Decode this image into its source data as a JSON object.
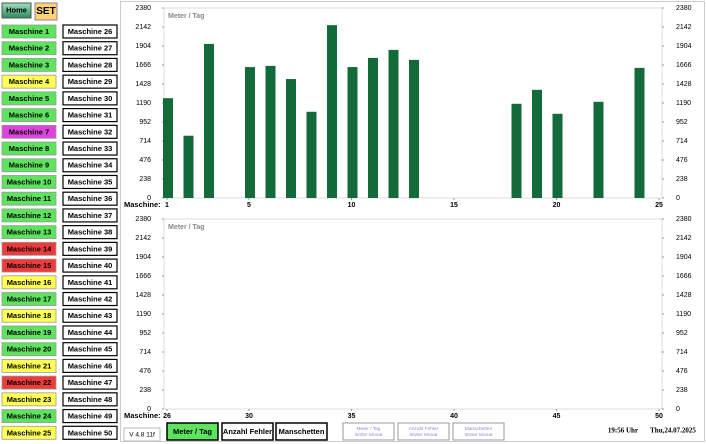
{
  "header": {
    "home": "Home",
    "set": "SET"
  },
  "machines": [
    {
      "label": "Maschine 1",
      "color": "#5ee35e"
    },
    {
      "label": "Maschine 2",
      "color": "#5ee35e"
    },
    {
      "label": "Maschine 3",
      "color": "#5ee35e"
    },
    {
      "label": "Maschine 4",
      "color": "#ffff55"
    },
    {
      "label": "Maschine 5",
      "color": "#5ee35e"
    },
    {
      "label": "Maschine 6",
      "color": "#5ee35e"
    },
    {
      "label": "Maschine 7",
      "color": "#dd44dd"
    },
    {
      "label": "Maschine 8",
      "color": "#5ee35e"
    },
    {
      "label": "Maschine 9",
      "color": "#5ee35e"
    },
    {
      "label": "Maschine 10",
      "color": "#5ee35e"
    },
    {
      "label": "Maschine 11",
      "color": "#5ee35e"
    },
    {
      "label": "Maschine 12",
      "color": "#5ee35e"
    },
    {
      "label": "Maschine 13",
      "color": "#5ee35e"
    },
    {
      "label": "Maschine 14",
      "color": "#ee3b3b"
    },
    {
      "label": "Maschine 15",
      "color": "#ee3b3b"
    },
    {
      "label": "Maschine 16",
      "color": "#ffff55"
    },
    {
      "label": "Maschine 17",
      "color": "#5ee35e"
    },
    {
      "label": "Maschine 18",
      "color": "#ffff55"
    },
    {
      "label": "Maschine 19",
      "color": "#5ee35e"
    },
    {
      "label": "Maschine 20",
      "color": "#5ee35e"
    },
    {
      "label": "Maschine 21",
      "color": "#ffff55"
    },
    {
      "label": "Maschine 22",
      "color": "#ee3b3b"
    },
    {
      "label": "Maschine 23",
      "color": "#ffff55"
    },
    {
      "label": "Maschine 24",
      "color": "#5ee35e"
    },
    {
      "label": "Maschine 25",
      "color": "#ffff55"
    },
    {
      "label": "Maschine 26",
      "color": "#ffffff"
    },
    {
      "label": "Maschine 27",
      "color": "#ffffff"
    },
    {
      "label": "Maschine 28",
      "color": "#ffffff"
    },
    {
      "label": "Maschine 29",
      "color": "#ffffff"
    },
    {
      "label": "Maschine 30",
      "color": "#ffffff"
    },
    {
      "label": "Maschine 31",
      "color": "#ffffff"
    },
    {
      "label": "Maschine 32",
      "color": "#ffffff"
    },
    {
      "label": "Maschine 33",
      "color": "#ffffff"
    },
    {
      "label": "Maschine 34",
      "color": "#ffffff"
    },
    {
      "label": "Maschine 35",
      "color": "#ffffff"
    },
    {
      "label": "Maschine 36",
      "color": "#ffffff"
    },
    {
      "label": "Maschine 37",
      "color": "#ffffff"
    },
    {
      "label": "Maschine 38",
      "color": "#ffffff"
    },
    {
      "label": "Maschine 39",
      "color": "#ffffff"
    },
    {
      "label": "Maschine 40",
      "color": "#ffffff"
    },
    {
      "label": "Maschine 41",
      "color": "#ffffff"
    },
    {
      "label": "Maschine 42",
      "color": "#ffffff"
    },
    {
      "label": "Maschine 43",
      "color": "#ffffff"
    },
    {
      "label": "Maschine 44",
      "color": "#ffffff"
    },
    {
      "label": "Maschine 45",
      "color": "#ffffff"
    },
    {
      "label": "Maschine 46",
      "color": "#ffffff"
    },
    {
      "label": "Maschine 47",
      "color": "#ffffff"
    },
    {
      "label": "Maschine 48",
      "color": "#ffffff"
    },
    {
      "label": "Maschine 49",
      "color": "#ffffff"
    },
    {
      "label": "Maschine 50",
      "color": "#ffffff"
    }
  ],
  "chart_data": [
    {
      "type": "bar",
      "title": "Meter / Tag",
      "x_label": "Maschine:",
      "x": [
        1,
        2,
        3,
        4,
        5,
        6,
        7,
        8,
        9,
        10,
        11,
        12,
        13,
        14,
        15,
        16,
        17,
        18,
        19,
        20,
        21,
        22,
        23,
        24,
        25
      ],
      "values": [
        1250,
        780,
        1930,
        0,
        1640,
        1655,
        1490,
        1080,
        2165,
        1640,
        1755,
        1855,
        1730,
        0,
        0,
        0,
        0,
        1180,
        1355,
        1055,
        0,
        1205,
        0,
        1630,
        0
      ],
      "color": "#146b3a",
      "xlim": [
        1,
        25
      ],
      "xticks": [
        1,
        5,
        10,
        15,
        20,
        25
      ],
      "ylim": [
        0,
        2380
      ],
      "yticks": [
        0,
        238,
        476,
        714,
        952,
        1190,
        1428,
        1666,
        1904,
        2142,
        2380
      ],
      "y2lim": [
        0,
        2380
      ],
      "y2ticks": [
        0,
        238,
        476,
        714,
        952,
        1190,
        1428,
        1666,
        1904,
        2142,
        2380
      ]
    },
    {
      "type": "bar",
      "title": "Meter / Tag",
      "x_label": "Maschine:",
      "x": [
        26,
        27,
        28,
        29,
        30,
        31,
        32,
        33,
        34,
        35,
        36,
        37,
        38,
        39,
        40,
        41,
        42,
        43,
        44,
        45,
        46,
        47,
        48,
        49,
        50
      ],
      "values": [
        0,
        0,
        0,
        0,
        0,
        0,
        0,
        0,
        0,
        0,
        0,
        0,
        0,
        0,
        0,
        0,
        0,
        0,
        0,
        0,
        0,
        0,
        0,
        0,
        0
      ],
      "color": "#146b3a",
      "xlim": [
        26,
        50
      ],
      "xticks": [
        26,
        30,
        35,
        40,
        45,
        50
      ],
      "ylim": [
        0,
        2380
      ],
      "yticks": [
        0,
        238,
        476,
        714,
        952,
        1190,
        1428,
        1666,
        1904,
        2142,
        2380
      ],
      "y2lim": [
        0,
        2380
      ],
      "y2ticks": [
        0,
        238,
        476,
        714,
        952,
        1190,
        1428,
        1666,
        1904,
        2142,
        2380
      ]
    }
  ],
  "footer": {
    "version": "V 4.8 11f",
    "buttons": [
      {
        "lines": [
          "Meter / Tag"
        ],
        "color": "#5ee35e",
        "enabled": true
      },
      {
        "lines": [
          "Anzahl Fehler"
        ],
        "color": "#ffffff",
        "enabled": true
      },
      {
        "lines": [
          "Manschetten"
        ],
        "color": "#ffffff",
        "enabled": true
      },
      {
        "lines": [
          "Meter / Tag",
          "letzter Monat"
        ],
        "color": "#ffffff",
        "enabled": false
      },
      {
        "lines": [
          "Anzahl Fehler",
          "letzter Monat"
        ],
        "color": "#ffffff",
        "enabled": false
      },
      {
        "lines": [
          "Manschetten",
          "letzter Monat"
        ],
        "color": "#ffffff",
        "enabled": false
      }
    ],
    "time": "19:56 Uhr",
    "date": "Thu,24.07.2025"
  }
}
